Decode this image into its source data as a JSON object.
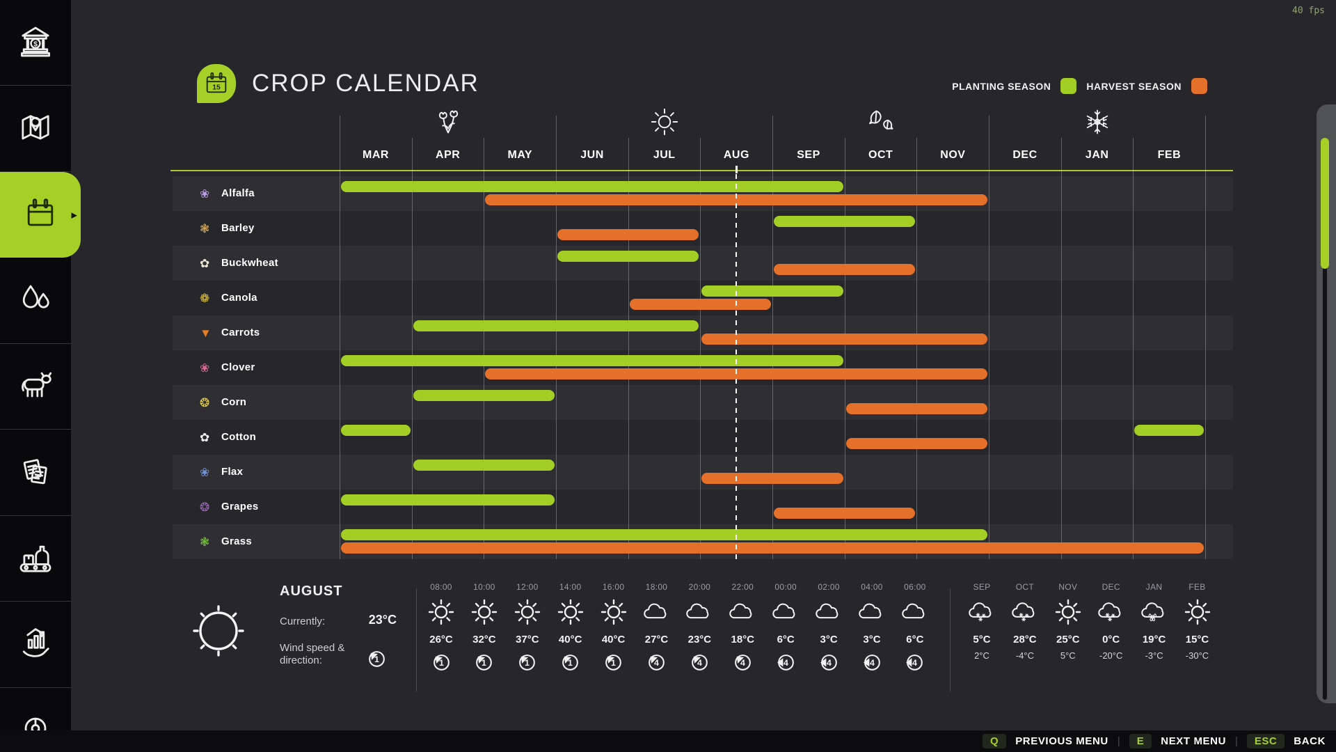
{
  "fps": "40 fps",
  "header": {
    "title": "CROP CALENDAR"
  },
  "legend": {
    "planting_label": "PLANTING SEASON",
    "harvest_label": "HARVEST SEASON"
  },
  "colors": {
    "planting": "#a3ce25",
    "harvest": "#e5702a",
    "active_sidebar": "#a6d028"
  },
  "sidebar": {
    "active_index": 2,
    "items": [
      {
        "icon": "bank-icon"
      },
      {
        "icon": "map-icon"
      },
      {
        "icon": "calendar-icon"
      },
      {
        "icon": "droplets-icon"
      },
      {
        "icon": "cow-icon"
      },
      {
        "icon": "documents-icon"
      },
      {
        "icon": "production-icon"
      },
      {
        "icon": "statistics-icon"
      },
      {
        "icon": "partial-icon"
      }
    ]
  },
  "chart_data": {
    "type": "gantt-calendar",
    "months": [
      "MAR",
      "APR",
      "MAY",
      "JUN",
      "JUL",
      "AUG",
      "SEP",
      "OCT",
      "NOV",
      "DEC",
      "JAN",
      "FEB"
    ],
    "season_icons": [
      {
        "icon": "spring-flowers-icon",
        "month_index": 1
      },
      {
        "icon": "summer-sun-icon",
        "month_index": 4
      },
      {
        "icon": "autumn-leaves-icon",
        "month_index": 7
      },
      {
        "icon": "winter-snowflake-icon",
        "month_index": 10
      }
    ],
    "current_date_marker": {
      "month": "AUG",
      "fraction": 0.5
    },
    "rows": [
      {
        "crop": "Alfalfa",
        "icon_glyph": "❀",
        "icon_color": "#b99ce0",
        "planting": [
          [
            1,
            7
          ]
        ],
        "harvest": [
          [
            3,
            9
          ]
        ]
      },
      {
        "crop": "Barley",
        "icon_glyph": "❃",
        "icon_color": "#d4a95c",
        "planting": [
          [
            7,
            8
          ]
        ],
        "harvest": [
          [
            4,
            5
          ]
        ]
      },
      {
        "crop": "Buckwheat",
        "icon_glyph": "✿",
        "icon_color": "#ede6d2",
        "planting": [
          [
            4,
            5
          ]
        ],
        "harvest": [
          [
            7,
            8
          ]
        ]
      },
      {
        "crop": "Canola",
        "icon_glyph": "❁",
        "icon_color": "#e9c93c",
        "planting": [
          [
            6,
            7
          ]
        ],
        "harvest": [
          [
            5,
            6
          ]
        ]
      },
      {
        "crop": "Carrots",
        "icon_glyph": "▼",
        "icon_color": "#e57c28",
        "planting": [
          [
            2,
            5
          ]
        ],
        "harvest": [
          [
            6,
            9
          ]
        ]
      },
      {
        "crop": "Clover",
        "icon_glyph": "❀",
        "icon_color": "#d76a93",
        "planting": [
          [
            1,
            7
          ]
        ],
        "harvest": [
          [
            3,
            9
          ]
        ]
      },
      {
        "crop": "Corn",
        "icon_glyph": "❂",
        "icon_color": "#ecd44a",
        "planting": [
          [
            2,
            3
          ]
        ],
        "harvest": [
          [
            8,
            9
          ]
        ]
      },
      {
        "crop": "Cotton",
        "icon_glyph": "✿",
        "icon_color": "#f2f2f2",
        "planting": [
          [
            1,
            1
          ],
          [
            12,
            12
          ]
        ],
        "harvest": [
          [
            8,
            9
          ]
        ]
      },
      {
        "crop": "Flax",
        "icon_glyph": "❀",
        "icon_color": "#6e8fd0",
        "planting": [
          [
            2,
            3
          ]
        ],
        "harvest": [
          [
            6,
            7
          ]
        ]
      },
      {
        "crop": "Grapes",
        "icon_glyph": "❂",
        "icon_color": "#9a6ab8",
        "planting": [
          [
            1,
            3
          ]
        ],
        "harvest": [
          [
            7,
            8
          ]
        ]
      },
      {
        "crop": "Grass",
        "icon_glyph": "❃",
        "icon_color": "#79c13e",
        "planting": [
          [
            1,
            9
          ]
        ],
        "harvest": [
          [
            1,
            12
          ]
        ]
      }
    ]
  },
  "weather": {
    "month": "AUGUST",
    "currently_label": "Currently:",
    "current_temp": "23°C",
    "wind_label": "Wind speed & direction:",
    "wind": {
      "value": "1",
      "dir": "sw"
    },
    "hourly": [
      {
        "time": "08:00",
        "icon": "sun",
        "temp": "26°C",
        "wind": "1",
        "dir": "sw"
      },
      {
        "time": "10:00",
        "icon": "sun",
        "temp": "32°C",
        "wind": "1",
        "dir": "sw"
      },
      {
        "time": "12:00",
        "icon": "sun",
        "temp": "37°C",
        "wind": "1",
        "dir": "sw"
      },
      {
        "time": "14:00",
        "icon": "sun",
        "temp": "40°C",
        "wind": "1",
        "dir": "sw"
      },
      {
        "time": "16:00",
        "icon": "sun",
        "temp": "40°C",
        "wind": "1",
        "dir": "sw"
      },
      {
        "time": "18:00",
        "icon": "cloud",
        "temp": "27°C",
        "wind": "4",
        "dir": "sw"
      },
      {
        "time": "20:00",
        "icon": "cloud",
        "temp": "23°C",
        "wind": "4",
        "dir": "sw"
      },
      {
        "time": "22:00",
        "icon": "cloud",
        "temp": "18°C",
        "wind": "4",
        "dir": "sw"
      },
      {
        "time": "00:00",
        "icon": "cloud",
        "temp": "6°C",
        "wind": "4",
        "dir": "w"
      },
      {
        "time": "02:00",
        "icon": "cloud",
        "temp": "3°C",
        "wind": "4",
        "dir": "w"
      },
      {
        "time": "04:00",
        "icon": "cloud",
        "temp": "3°C",
        "wind": "4",
        "dir": "w"
      },
      {
        "time": "06:00",
        "icon": "cloud",
        "temp": "6°C",
        "wind": "4",
        "dir": "w"
      }
    ],
    "monthly": [
      {
        "month": "SEP",
        "icon": "snow-cloud",
        "high": "5°C",
        "low": "2°C"
      },
      {
        "month": "OCT",
        "icon": "snow-cloud",
        "high": "28°C",
        "low": "-4°C"
      },
      {
        "month": "NOV",
        "icon": "sun",
        "high": "25°C",
        "low": "5°C"
      },
      {
        "month": "DEC",
        "icon": "snow-cloud",
        "high": "0°C",
        "low": "-20°C"
      },
      {
        "month": "JAN",
        "icon": "rain-cloud",
        "high": "19°C",
        "low": "-3°C"
      },
      {
        "month": "FEB",
        "icon": "sun",
        "high": "15°C",
        "low": "-30°C"
      }
    ]
  },
  "footer": {
    "buttons": [
      {
        "key": "Q",
        "label": "PREVIOUS MENU"
      },
      {
        "key": "E",
        "label": "NEXT MENU"
      },
      {
        "key": "ESC",
        "label": "BACK"
      }
    ]
  }
}
